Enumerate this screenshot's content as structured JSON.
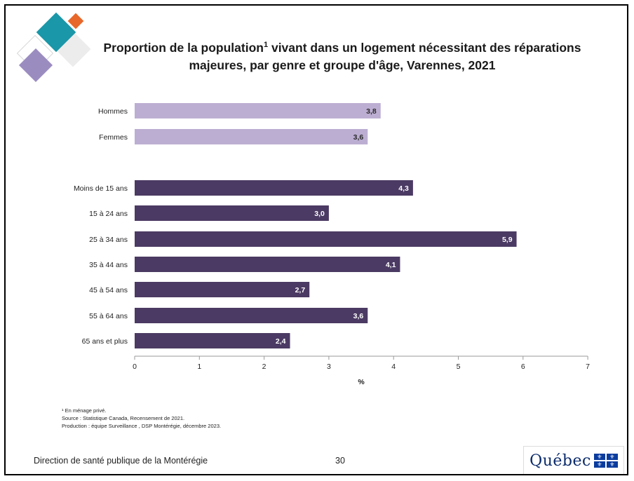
{
  "title": {
    "part1": "Proportion de la population",
    "superscript": "1",
    "part2": " vivant dans un logement nécessitant des réparations",
    "line2": "majeures, par genre et groupe d'âge, Varennes, 2021"
  },
  "chart_data": {
    "type": "bar",
    "orientation": "horizontal",
    "title": "Proportion de la population¹ vivant dans un logement nécessitant des réparations majeures, par genre et groupe d'âge, Varennes, 2021",
    "xlabel": "%",
    "xlim": [
      0,
      7
    ],
    "x_ticks": [
      0,
      1,
      2,
      3,
      4,
      5,
      6,
      7
    ],
    "grid": false,
    "categories": [
      "Hommes",
      "Femmes",
      "Moins de 15 ans",
      "15 à 24 ans",
      "25 à 34 ans",
      "35 à 44 ans",
      "45 à 54 ans",
      "55 à 64 ans",
      "65 ans et plus"
    ],
    "values": [
      3.8,
      3.6,
      4.3,
      3.0,
      5.9,
      4.1,
      2.7,
      3.6,
      2.4
    ],
    "data_labels": [
      "3,8",
      "3,6",
      "4,3",
      "3,0",
      "5,9",
      "4,1",
      "2,7",
      "3,6",
      "2,4"
    ],
    "groups": [
      "genre",
      "genre",
      "age",
      "age",
      "age",
      "age",
      "age",
      "age",
      "age"
    ],
    "colors": {
      "genre": "#bcaed2",
      "age": "#4b3a63",
      "label_on_dark": "#ffffff",
      "label_on_light": "#2b2b2b"
    }
  },
  "footnotes": {
    "note1": "¹ En ménage privé.",
    "source": "Source : Statistique Canada, Recensement de 2021.",
    "production": "Production : équipe Surveillance , DSP Montérégie, décembre 2023."
  },
  "footer": {
    "organization": "Direction de santé publique de la Montérégie",
    "page_number": "30",
    "logo_text": "Québec"
  }
}
